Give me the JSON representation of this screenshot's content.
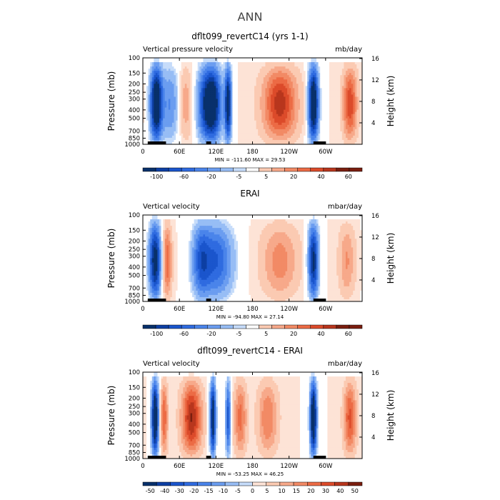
{
  "page": {
    "title": "ANN"
  },
  "chart_data": [
    {
      "type": "heatmap",
      "title": "dflt099_revertC14 (yrs 1-1)",
      "left_label": "Vertical pressure velocity",
      "right_label": "mb/day",
      "ylabel": "Pressure (mb)",
      "y2label": "Height (km)",
      "xticks": [
        "0",
        "60E",
        "120E",
        "180",
        "120W",
        "60W"
      ],
      "yticks": [
        "100",
        "150",
        "200",
        "250",
        "300",
        "400",
        "500",
        "700",
        "850",
        "1000"
      ],
      "y2ticks": [
        "4",
        "8",
        "12",
        "16"
      ],
      "minmax": "MIN = -111.60   MAX =  29.53",
      "colorbar_labels": [
        "-100",
        "-60",
        "-20",
        "-5",
        "5",
        "20",
        "40",
        "60"
      ],
      "colorbar_levels": [
        -100,
        -80,
        -60,
        -40,
        -20,
        -10,
        -5,
        -1,
        1,
        5,
        10,
        20,
        30,
        40,
        50,
        60
      ],
      "upward_bands": [
        {
          "lon": 22,
          "width": 14,
          "strength": 1.0
        },
        {
          "lon": 115,
          "width": 20,
          "strength": 0.9
        },
        {
          "lon": 140,
          "width": 8,
          "strength": 0.85
        },
        {
          "lon": 280,
          "width": 12,
          "strength": 1.0
        },
        {
          "lon": 45,
          "width": 20,
          "strength": 0.35
        },
        {
          "lon": 100,
          "width": 18,
          "strength": 0.45
        }
      ],
      "subsidence_bands": [
        {
          "lon": 225,
          "width": 38,
          "strength": 0.7
        },
        {
          "lon": 340,
          "width": 16,
          "strength": 0.6
        },
        {
          "lon": 70,
          "width": 14,
          "strength": 0.25
        }
      ]
    },
    {
      "type": "heatmap",
      "title": "ERAI",
      "left_label": "Vertical velocity",
      "right_label": "mbar/day",
      "ylabel": "Pressure (mb)",
      "y2label": "Height (km)",
      "xticks": [
        "0",
        "60E",
        "120E",
        "180",
        "120W",
        "60W"
      ],
      "yticks": [
        "100",
        "150",
        "200",
        "250",
        "300",
        "400",
        "500",
        "700",
        "850",
        "1000"
      ],
      "y2ticks": [
        "4",
        "8",
        "12",
        "16"
      ],
      "minmax": "MIN = -94.80   MAX =  27.14",
      "colorbar_labels": [
        "-100",
        "-60",
        "-20",
        "-5",
        "5",
        "20",
        "40",
        "60"
      ],
      "colorbar_levels": [
        -100,
        -80,
        -60,
        -40,
        -20,
        -10,
        -5,
        -1,
        1,
        5,
        10,
        20,
        30,
        40,
        50,
        60
      ],
      "upward_bands": [
        {
          "lon": 20,
          "width": 14,
          "strength": 0.85
        },
        {
          "lon": 120,
          "width": 40,
          "strength": 0.55
        },
        {
          "lon": 280,
          "width": 12,
          "strength": 0.8
        },
        {
          "lon": 95,
          "width": 20,
          "strength": 0.4
        }
      ],
      "subsidence_bands": [
        {
          "lon": 40,
          "width": 10,
          "strength": 0.5
        },
        {
          "lon": 225,
          "width": 40,
          "strength": 0.35
        },
        {
          "lon": 335,
          "width": 18,
          "strength": 0.3
        }
      ]
    },
    {
      "type": "heatmap",
      "title": "dflt099_revertC14 - ERAI",
      "left_label": "Vertical velocity",
      "right_label": "mbar/day",
      "ylabel": "Pressure (mb)",
      "y2label": "Height (km)",
      "xticks": [
        "0",
        "60E",
        "120E",
        "180",
        "120W",
        "60W"
      ],
      "yticks": [
        "100",
        "150",
        "200",
        "250",
        "300",
        "400",
        "500",
        "700",
        "850",
        "1000"
      ],
      "y2ticks": [
        "4",
        "8",
        "12",
        "16"
      ],
      "minmax": "MIN = -53.25   MAX =  46.25",
      "colorbar_labels": [
        "-50",
        "-40",
        "-30",
        "-20",
        "-15",
        "-10",
        "-5",
        "0",
        "5",
        "10",
        "15",
        "20",
        "30",
        "40",
        "50"
      ],
      "colorbar_levels": [
        -50,
        -40,
        -30,
        -20,
        -15,
        -10,
        -5,
        0,
        5,
        10,
        15,
        20,
        30,
        40,
        50
      ],
      "upward_bands": [
        {
          "lon": 20,
          "width": 8,
          "strength": 1.0
        },
        {
          "lon": 115,
          "width": 7,
          "strength": 0.9
        },
        {
          "lon": 140,
          "width": 6,
          "strength": 0.6
        },
        {
          "lon": 280,
          "width": 8,
          "strength": 1.0
        }
      ],
      "subsidence_bands": [
        {
          "lon": 80,
          "width": 22,
          "strength": 0.75
        },
        {
          "lon": 160,
          "width": 14,
          "strength": 0.45
        },
        {
          "lon": 205,
          "width": 22,
          "strength": 0.4
        },
        {
          "lon": 340,
          "width": 14,
          "strength": 0.55
        },
        {
          "lon": 35,
          "width": 8,
          "strength": 0.5
        }
      ]
    }
  ],
  "colors": {
    "blues": [
      "#08306b",
      "#0d3fa3",
      "#1a55cc",
      "#2f6be0",
      "#4a84ea",
      "#6b9df0",
      "#97bdf5",
      "#c6dcfa"
    ],
    "reds": [
      "#fde3d6",
      "#fbcab2",
      "#f7a98a",
      "#f28a65",
      "#ec6b45",
      "#dc4b2a",
      "#b8361d",
      "#7a1e0f"
    ],
    "land": "#000000"
  }
}
